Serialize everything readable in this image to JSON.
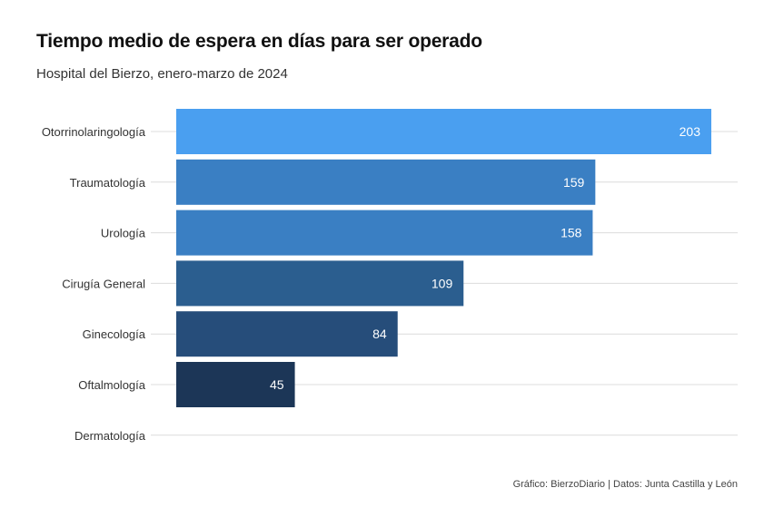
{
  "chart_data": {
    "type": "bar",
    "orientation": "horizontal",
    "title": "Tiempo medio de espera en días para ser operado",
    "subtitle": "Hospital del Bierzo, enero-marzo de 2024",
    "caption": "Gráfico: BierzoDiario | Datos: Junta Castilla y León",
    "categories": [
      "Otorrinolaringología",
      "Traumatología",
      "Urología",
      "Cirugía General",
      "Ginecología",
      "Oftalmología",
      "Dermatología"
    ],
    "values": [
      203,
      159,
      158,
      109,
      84,
      45,
      0
    ],
    "value_labels": [
      "203",
      "159",
      "158",
      "109",
      "84",
      "45",
      ""
    ],
    "colors": [
      "#4a9ff0",
      "#3a7fc3",
      "#3a7fc3",
      "#2b5e8f",
      "#264d7a",
      "#1c3657",
      "#1c3657"
    ],
    "xlim": [
      0,
      213
    ],
    "grid": true,
    "legend": "none"
  }
}
